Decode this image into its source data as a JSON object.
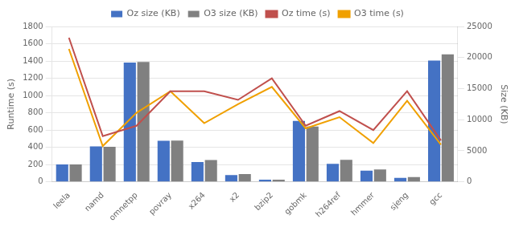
{
  "chart_data": {
    "type": "bar",
    "categories": [
      "leela",
      "namd",
      "omnetpp",
      "povray",
      "x264",
      "x2",
      "bzip2",
      "gobmk",
      "h264ref",
      "hmmer",
      "sjeng",
      "gcc"
    ],
    "series": [
      {
        "name": "Oz size (KB)",
        "type": "bar",
        "axis": "y2",
        "color": "#4472c4",
        "values": [
          2800,
          5700,
          19200,
          6600,
          3200,
          1100,
          350,
          9800,
          2900,
          1800,
          630,
          19500
        ]
      },
      {
        "name": "O3 size (KB)",
        "type": "bar",
        "axis": "y2",
        "color": "#808080",
        "values": [
          2800,
          5650,
          19300,
          6650,
          3500,
          1250,
          350,
          8900,
          3550,
          2000,
          760,
          20500
        ]
      },
      {
        "name": "Oz time (s)",
        "type": "line",
        "color": "#c0504d",
        "values": [
          1670,
          530,
          650,
          1050,
          1050,
          950,
          1200,
          650,
          820,
          600,
          1050,
          480
        ]
      },
      {
        "name": "O3 time (s)",
        "type": "line",
        "color": "#f0a000",
        "values": [
          1540,
          415,
          800,
          1050,
          680,
          900,
          1100,
          620,
          750,
          450,
          940,
          430
        ]
      }
    ],
    "ylabel": "Runtime (s)",
    "y2label": "Size (KB)",
    "ylim": [
      0,
      1800
    ],
    "yticks": [
      0,
      200,
      400,
      600,
      800,
      1000,
      1200,
      1400,
      1600,
      1800
    ],
    "y2lim": [
      0,
      25000
    ],
    "y2ticks": [
      0,
      5000,
      10000,
      15000,
      20000,
      25000
    ],
    "grid": true,
    "legend": "top"
  }
}
